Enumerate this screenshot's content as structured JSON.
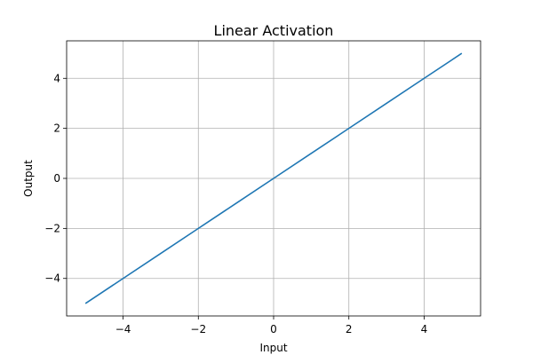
{
  "chart_data": {
    "type": "line",
    "title": "Linear Activation",
    "xlabel": "Input",
    "ylabel": "Output",
    "xlim": [
      -5.5,
      5.5
    ],
    "ylim": [
      -5.5,
      5.5
    ],
    "xticks": [
      -4,
      -2,
      0,
      2,
      4
    ],
    "yticks": [
      -4,
      -2,
      0,
      2,
      4
    ],
    "xtick_labels": [
      "−4",
      "−2",
      "0",
      "2",
      "4"
    ],
    "ytick_labels": [
      "−4",
      "−2",
      "0",
      "2",
      "4"
    ],
    "grid": true,
    "series": [
      {
        "color": "#1f77b4",
        "x": [
          -5,
          -4,
          -3,
          -2,
          -1,
          0,
          1,
          2,
          3,
          4,
          5
        ],
        "y": [
          -5,
          -4,
          -3,
          -2,
          -1,
          0,
          1,
          2,
          3,
          4,
          5
        ]
      }
    ]
  }
}
